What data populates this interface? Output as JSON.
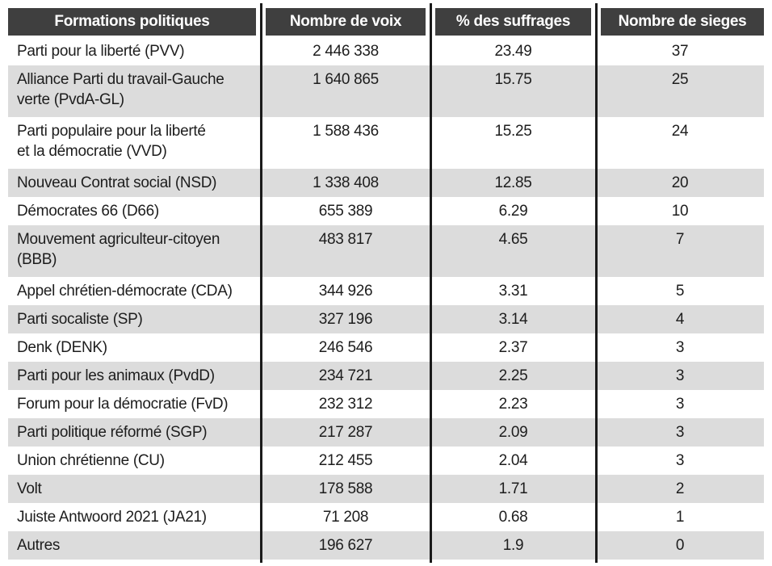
{
  "table": {
    "columns": [
      {
        "label": "Formations politiques"
      },
      {
        "label": "Nombre de voix"
      },
      {
        "label": "% des suffrages"
      },
      {
        "label": "Nombre de sieges"
      }
    ],
    "rows": [
      {
        "name": "Parti pour la liberté (PVV)",
        "votes": "2 446 338",
        "pct": "23.49",
        "seats": "37"
      },
      {
        "name": "Alliance Parti du travail-Gauche\nverte (PvdA-GL)",
        "votes": "1 640 865",
        "pct": "15.75",
        "seats": "25"
      },
      {
        "name": "Parti populaire pour la liberté\net la démocratie (VVD)",
        "votes": "1 588 436",
        "pct": "15.25",
        "seats": "24"
      },
      {
        "name": "Nouveau Contrat social (NSD)",
        "votes": "1 338 408",
        "pct": "12.85",
        "seats": "20"
      },
      {
        "name": "Démocrates 66 (D66)",
        "votes": "655 389",
        "pct": "6.29",
        "seats": "10"
      },
      {
        "name": "Mouvement agriculteur-citoyen\n(BBB)",
        "votes": "483 817",
        "pct": "4.65",
        "seats": "7"
      },
      {
        "name": "Appel chrétien-démocrate (CDA)",
        "votes": "344 926",
        "pct": "3.31",
        "seats": "5"
      },
      {
        "name": "Parti socaliste (SP)",
        "votes": "327 196",
        "pct": "3.14",
        "seats": "4"
      },
      {
        "name": "Denk (DENK)",
        "votes": "246 546",
        "pct": "2.37",
        "seats": "3"
      },
      {
        "name": "Parti pour les animaux (PvdD)",
        "votes": "234 721",
        "pct": "2.25",
        "seats": "3"
      },
      {
        "name": "Forum pour la démocratie (FvD)",
        "votes": "232 312",
        "pct": "2.23",
        "seats": "3"
      },
      {
        "name": "Parti politique réformé (SGP)",
        "votes": "217 287",
        "pct": "2.09",
        "seats": "3"
      },
      {
        "name": "Union chrétienne (CU)",
        "votes": "212 455",
        "pct": "2.04",
        "seats": "3"
      },
      {
        "name": "Volt",
        "votes": "178 588",
        "pct": "1.71",
        "seats": "2"
      },
      {
        "name": "Juiste Antwoord 2021  (JA21)",
        "votes": "71 208",
        "pct": "0.68",
        "seats": "1"
      },
      {
        "name": "Autres",
        "votes": "196 627",
        "pct": "1.9",
        "seats": "0"
      }
    ]
  },
  "colors": {
    "header_bg": "#3f3f3f",
    "header_text": "#ffffff",
    "row_alt_bg": "#dcdcdc",
    "row_bg": "#ffffff",
    "separator_line": "#1b1b1b",
    "body_text": "#1d1d1d"
  },
  "chart_data": {
    "type": "table",
    "title": "",
    "columns": [
      "Formations politiques",
      "Nombre de voix",
      "% des suffrages",
      "Nombre de sieges"
    ],
    "rows": [
      [
        "Parti pour la liberté (PVV)",
        2446338,
        23.49,
        37
      ],
      [
        "Alliance Parti du travail-Gauche verte (PvdA-GL)",
        1640865,
        15.75,
        25
      ],
      [
        "Parti populaire pour la liberté et la démocratie (VVD)",
        1588436,
        15.25,
        24
      ],
      [
        "Nouveau Contrat social (NSD)",
        1338408,
        12.85,
        20
      ],
      [
        "Démocrates 66 (D66)",
        655389,
        6.29,
        10
      ],
      [
        "Mouvement agriculteur-citoyen (BBB)",
        483817,
        4.65,
        7
      ],
      [
        "Appel chrétien-démocrate (CDA)",
        344926,
        3.31,
        5
      ],
      [
        "Parti socaliste (SP)",
        327196,
        3.14,
        4
      ],
      [
        "Denk (DENK)",
        246546,
        2.37,
        3
      ],
      [
        "Parti pour les animaux (PvdD)",
        234721,
        2.25,
        3
      ],
      [
        "Forum pour la démocratie (FvD)",
        232312,
        2.23,
        3
      ],
      [
        "Parti politique réformé (SGP)",
        217287,
        2.09,
        3
      ],
      [
        "Union chrétienne (CU)",
        212455,
        2.04,
        3
      ],
      [
        "Volt",
        178588,
        1.71,
        2
      ],
      [
        "Juiste Antwoord 2021 (JA21)",
        71208,
        0.68,
        1
      ],
      [
        "Autres",
        196627,
        1.9,
        0
      ]
    ]
  }
}
